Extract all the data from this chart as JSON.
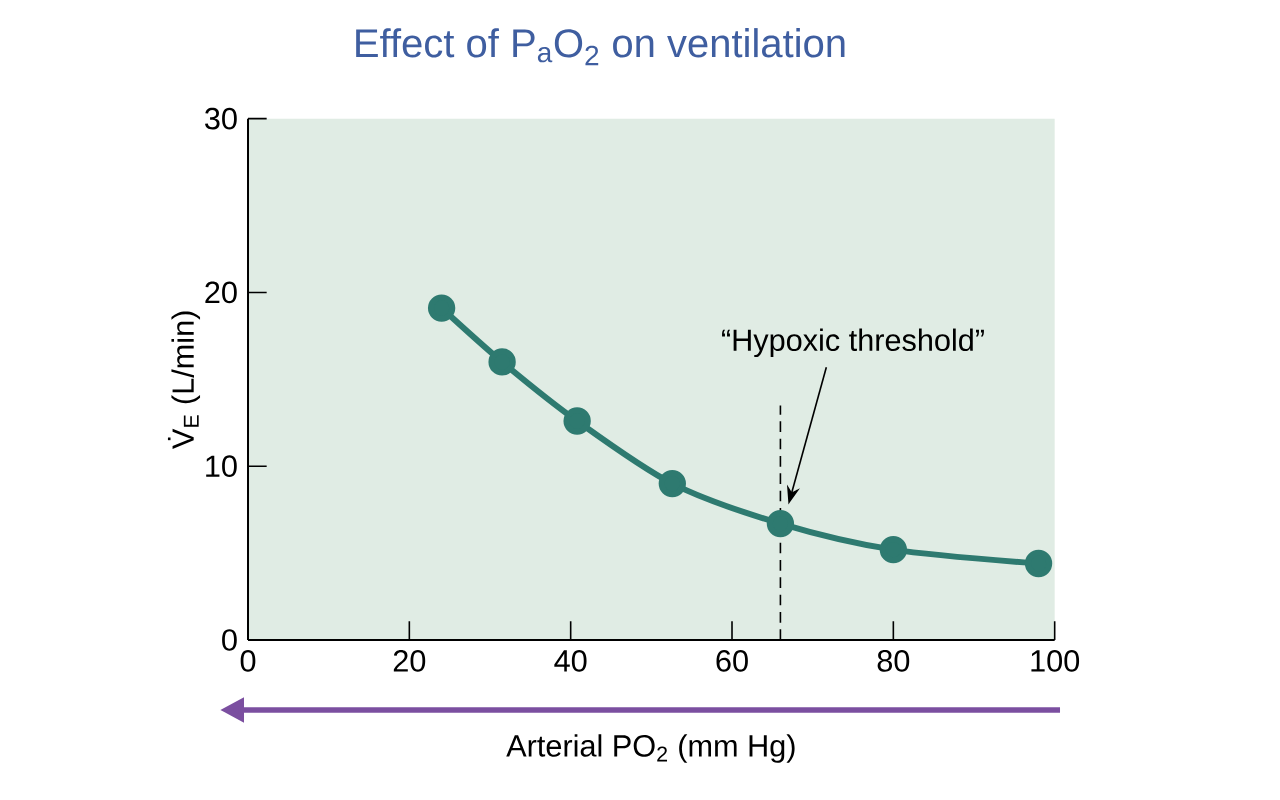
{
  "chart_data": {
    "type": "line",
    "title": "Effect of P$_{a}$O$_{2}$ on ventilation",
    "xlabel": "Arterial PO$_{2}$ (mm Hg)",
    "ylabel": "V̇$_{E}$ (L/min)",
    "x": [
      24,
      31.5,
      40.8,
      52.6,
      66,
      80,
      98
    ],
    "series": [
      {
        "color": "#2e7a70",
        "values": [
          19.1,
          16.0,
          12.6,
          9.0,
          6.7,
          5.2,
          4.4
        ]
      }
    ],
    "xlim": [
      0,
      100
    ],
    "xticks": [
      0,
      20,
      40,
      60,
      80,
      100
    ],
    "ylim": [
      0,
      30
    ],
    "yticks": [
      0,
      10,
      20,
      30
    ],
    "marker": "circle",
    "line_style": "solid",
    "grid": false,
    "legend": false,
    "ref_lines": [
      {
        "axis": "x",
        "value": 66,
        "line_style": "dashed",
        "color": "#000000"
      }
    ],
    "annotations": [
      "“Hypoxic threshold”"
    ]
  }
}
